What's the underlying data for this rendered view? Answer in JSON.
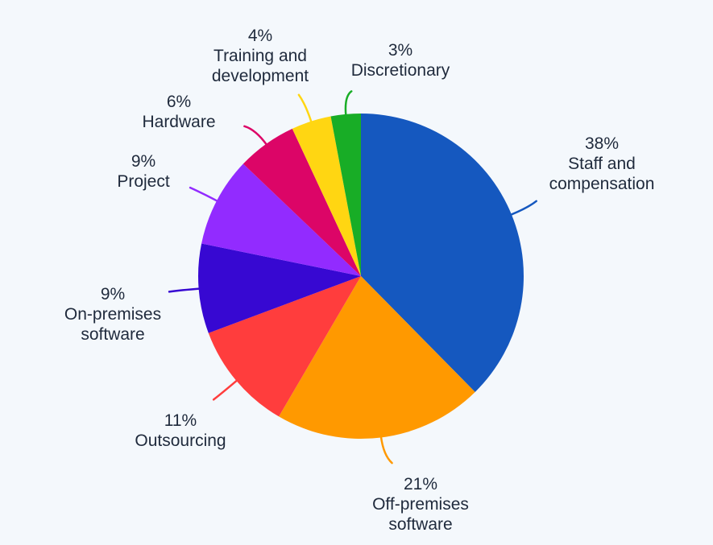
{
  "chart_data": {
    "type": "pie",
    "title": "",
    "slices": [
      {
        "label_lines": [
          "Staff and",
          "compensation"
        ],
        "value": 38,
        "value_label": "38%",
        "color": "#1558bf"
      },
      {
        "label_lines": [
          "Off-premises",
          "software"
        ],
        "value": 21,
        "value_label": "21%",
        "color": "#ff9900"
      },
      {
        "label_lines": [
          "Outsourcing"
        ],
        "value": 11,
        "value_label": "11%",
        "color": "#ff3d3d"
      },
      {
        "label_lines": [
          "On-premises",
          "software"
        ],
        "value": 9,
        "value_label": "9%",
        "color": "#3708d2"
      },
      {
        "label_lines": [
          "Project"
        ],
        "value": 9,
        "value_label": "9%",
        "color": "#922bff"
      },
      {
        "label_lines": [
          "Hardware"
        ],
        "value": 6,
        "value_label": "6%",
        "color": "#dc0567"
      },
      {
        "label_lines": [
          "Training and",
          "development"
        ],
        "value": 4,
        "value_label": "4%",
        "color": "#ffd612"
      },
      {
        "label_lines": [
          "Discretionary"
        ],
        "value": 3,
        "value_label": "3%",
        "color": "#18ad26"
      }
    ],
    "start_angle": "12 o'clock",
    "direction": "clockwise",
    "legend": "none"
  }
}
